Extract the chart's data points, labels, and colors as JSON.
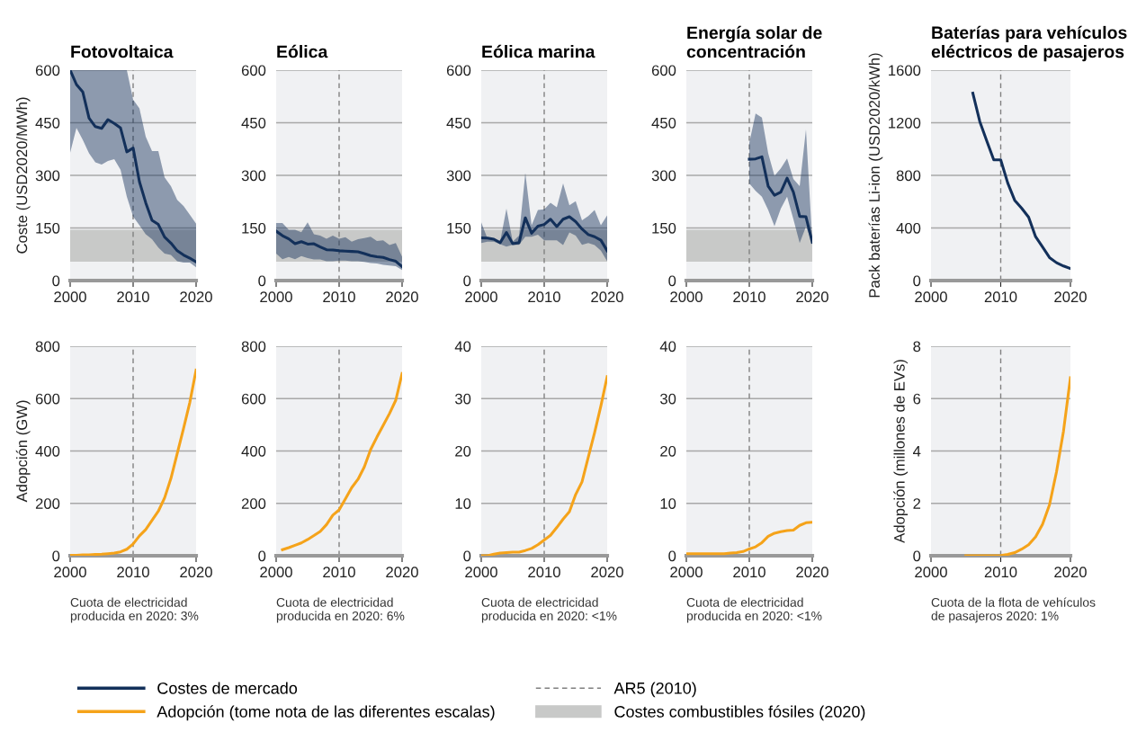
{
  "chart_data": [
    {
      "type": "line",
      "title": "Fotovoltaica",
      "ylabel": "Coste (USD2020/MWh)",
      "xlim": [
        2000,
        2020
      ],
      "xticks": [
        2000,
        2010,
        2020
      ],
      "ylim": [
        0,
        600
      ],
      "yticks": [
        0,
        150,
        300,
        450,
        600
      ],
      "grid": "y",
      "legend": "bottom",
      "x": [
        2000,
        2001,
        2002,
        2003,
        2004,
        2005,
        2006,
        2007,
        2008,
        2009,
        2010,
        2011,
        2012,
        2013,
        2014,
        2015,
        2016,
        2017,
        2018,
        2019,
        2020
      ],
      "series": [
        {
          "name": "Costes de mercado",
          "color": "#13305a",
          "values": [
            600,
            559,
            538,
            463,
            439,
            434,
            459,
            448,
            435,
            367,
            378,
            282,
            222,
            172,
            160,
            124,
            107,
            85,
            73,
            64,
            53
          ],
          "upper": [
            600,
            600,
            600,
            600,
            600,
            600,
            600,
            600,
            600,
            600,
            516,
            491,
            410,
            369,
            369,
            294,
            269,
            230,
            213,
            188,
            162
          ],
          "lower": [
            365,
            435,
            401,
            363,
            337,
            331,
            341,
            346,
            316,
            239,
            183,
            158,
            132,
            118,
            94,
            77,
            73,
            55,
            51,
            51,
            38
          ]
        }
      ],
      "bands": [
        {
          "axis": "y",
          "from": 54,
          "to": 145,
          "label": "Costes combustibles fósiles (2020)",
          "color": "#c8c9c8"
        }
      ],
      "ref_lines": [
        {
          "axis": "x",
          "value": 2010,
          "label": "AR5 (2010)",
          "color": "#808080",
          "line_style": "dashed"
        }
      ]
    },
    {
      "type": "line",
      "title": "Eólica",
      "xlim": [
        2000,
        2020
      ],
      "xticks": [
        2000,
        2010,
        2020
      ],
      "ylim": [
        0,
        600
      ],
      "yticks": [
        0,
        150,
        300,
        450,
        600
      ],
      "grid": "y",
      "x": [
        2000,
        2001,
        2002,
        2003,
        2004,
        2005,
        2006,
        2007,
        2008,
        2009,
        2010,
        2011,
        2012,
        2013,
        2014,
        2015,
        2016,
        2017,
        2018,
        2019,
        2020
      ],
      "series": [
        {
          "color": "#13305a",
          "values": [
            141,
            128,
            119,
            105,
            111,
            104,
            105,
            96,
            88,
            87,
            85,
            84,
            83,
            82,
            77,
            71,
            68,
            66,
            60,
            55,
            40
          ],
          "upper": [
            164,
            164,
            145,
            145,
            138,
            166,
            132,
            128,
            119,
            128,
            119,
            124,
            111,
            118,
            121,
            125,
            113,
            115,
            101,
            107,
            68
          ],
          "lower": [
            77,
            61,
            67,
            61,
            70,
            64,
            60,
            60,
            55,
            55,
            57,
            57,
            55,
            55,
            53,
            50,
            49,
            45,
            43,
            41,
            30
          ]
        }
      ],
      "bands": [
        {
          "axis": "y",
          "from": 54,
          "to": 145,
          "color": "#c8c9c8"
        }
      ],
      "ref_lines": [
        {
          "axis": "x",
          "value": 2010,
          "color": "#808080",
          "line_style": "dashed"
        }
      ]
    },
    {
      "type": "line",
      "title": "Eólica marina",
      "xlim": [
        2000,
        2020
      ],
      "xticks": [
        2000,
        2010,
        2020
      ],
      "ylim": [
        0,
        600
      ],
      "yticks": [
        0,
        150,
        300,
        450,
        600
      ],
      "grid": "y",
      "x": [
        2000,
        2001,
        2002,
        2003,
        2004,
        2005,
        2006,
        2007,
        2008,
        2009,
        2010,
        2011,
        2012,
        2013,
        2014,
        2015,
        2016,
        2017,
        2018,
        2019,
        2020
      ],
      "series": [
        {
          "color": "#13305a",
          "values": [
            122,
            121,
            118,
            108,
            137,
            105,
            108,
            179,
            135,
            155,
            160,
            175,
            154,
            175,
            182,
            168,
            147,
            131,
            125,
            115,
            85
          ],
          "upper": [
            166,
            119,
            118,
            111,
            205,
            111,
            128,
            307,
            158,
            201,
            203,
            222,
            209,
            277,
            215,
            226,
            172,
            184,
            201,
            158,
            186
          ],
          "lower": [
            107,
            111,
            111,
            104,
            97,
            102,
            102,
            125,
            125,
            131,
            115,
            115,
            115,
            101,
            137,
            128,
            102,
            107,
            101,
            85,
            55
          ]
        }
      ],
      "bands": [
        {
          "axis": "y",
          "from": 54,
          "to": 145,
          "color": "#c8c9c8"
        }
      ],
      "ref_lines": [
        {
          "axis": "x",
          "value": 2010,
          "color": "#808080",
          "line_style": "dashed"
        }
      ]
    },
    {
      "type": "line",
      "title": "Energía solar de\nconcentración",
      "xlim": [
        2000,
        2020
      ],
      "xticks": [
        2000,
        2010,
        2020
      ],
      "ylim": [
        0,
        600
      ],
      "yticks": [
        0,
        150,
        300,
        450,
        600
      ],
      "grid": "y",
      "x": [
        2010,
        2011,
        2012,
        2013,
        2014,
        2015,
        2016,
        2017,
        2018,
        2019,
        2020
      ],
      "series": [
        {
          "color": "#13305a",
          "values": [
            346,
            347,
            353,
            269,
            243,
            252,
            292,
            252,
            183,
            182,
            109
          ],
          "upper": [
            393,
            476,
            465,
            363,
            299,
            320,
            348,
            290,
            269,
            431,
            111
          ],
          "lower": [
            277,
            256,
            239,
            201,
            155,
            205,
            239,
            175,
            107,
            154,
            109
          ]
        }
      ],
      "bands": [
        {
          "axis": "y",
          "from": 54,
          "to": 145,
          "color": "#c8c9c8"
        }
      ],
      "ref_lines": [
        {
          "axis": "x",
          "value": 2010,
          "color": "#808080",
          "line_style": "dashed"
        }
      ]
    },
    {
      "type": "line",
      "title": "Baterías para vehículos\neléctricos de pasajeros",
      "ylabel": "Pack baterías Li-ion (USD2020/kWh)",
      "xlim": [
        2000,
        2020
      ],
      "xticks": [
        2000,
        2010,
        2020
      ],
      "ylim": [
        0,
        1600
      ],
      "yticks": [
        0,
        400,
        800,
        1200,
        1600
      ],
      "grid": "y",
      "x": [
        2006,
        2007,
        2008,
        2009,
        2010,
        2011,
        2012,
        2013,
        2014,
        2015,
        2016,
        2017,
        2018,
        2019,
        2020
      ],
      "series": [
        {
          "color": "#13305a",
          "values": [
            1425,
            1209,
            1061,
            918,
            918,
            743,
            611,
            550,
            482,
            334,
            255,
            175,
            136,
            111,
            91
          ]
        }
      ],
      "ref_lines": [
        {
          "axis": "x",
          "value": 2010,
          "color": "#808080",
          "line_style": "dashed"
        }
      ]
    },
    {
      "type": "line",
      "ylabel": "Adopción (GW)",
      "xlim": [
        2000,
        2020
      ],
      "xticks": [
        2000,
        2010,
        2020
      ],
      "ylim": [
        0,
        800
      ],
      "yticks": [
        0,
        200,
        400,
        600,
        800
      ],
      "grid": "y",
      "legend": "bottom",
      "annotations": [
        "Cuota de electricidad\nproducida en 2020: 3%"
      ],
      "x": [
        2000,
        2001,
        2002,
        2003,
        2004,
        2005,
        2006,
        2007,
        2008,
        2009,
        2010,
        2011,
        2012,
        2013,
        2014,
        2015,
        2016,
        2017,
        2018,
        2019,
        2020
      ],
      "series": [
        {
          "name": "Adopción (tome nota de las diferentes escalas)",
          "color": "#f5a31a",
          "values": [
            2,
            2,
            3,
            3,
            5,
            6,
            8,
            10,
            15,
            25,
            45,
            76,
            100,
            135,
            170,
            221,
            295,
            390,
            485,
            585,
            709
          ]
        }
      ],
      "ref_lines": [
        {
          "axis": "x",
          "value": 2010,
          "color": "#808080",
          "line_style": "dashed"
        }
      ]
    },
    {
      "type": "line",
      "xlim": [
        2000,
        2020
      ],
      "xticks": [
        2000,
        2010,
        2020
      ],
      "ylim": [
        0,
        800
      ],
      "yticks": [
        0,
        200,
        400,
        600,
        800
      ],
      "grid": "y",
      "annotations": [
        "Cuota de electricidad\nproducida en 2020: 6%"
      ],
      "x": [
        2001,
        2002,
        2003,
        2004,
        2005,
        2006,
        2007,
        2008,
        2009,
        2010,
        2011,
        2012,
        2013,
        2014,
        2015,
        2016,
        2017,
        2018,
        2019,
        2020
      ],
      "series": [
        {
          "color": "#f5a31a",
          "values": [
            23,
            31,
            40,
            49,
            62,
            77,
            93,
            119,
            155,
            175,
            217,
            260,
            292,
            339,
            405,
            453,
            498,
            543,
            594,
            696
          ]
        }
      ],
      "ref_lines": [
        {
          "axis": "x",
          "value": 2010,
          "color": "#808080",
          "line_style": "dashed"
        }
      ]
    },
    {
      "type": "line",
      "xlim": [
        2000,
        2020
      ],
      "xticks": [
        2000,
        2010,
        2020
      ],
      "ylim": [
        0,
        40
      ],
      "yticks": [
        0,
        10,
        20,
        30,
        40
      ],
      "grid": "y",
      "annotations": [
        "Cuota de electricidad\nproducida en 2020: <1%"
      ],
      "x": [
        2000,
        2001,
        2002,
        2003,
        2004,
        2005,
        2006,
        2007,
        2008,
        2009,
        2010,
        2011,
        2012,
        2013,
        2014,
        2015,
        2016,
        2017,
        2018,
        2019,
        2020
      ],
      "series": [
        {
          "color": "#f5a31a",
          "values": [
            0,
            0,
            0.3,
            0.5,
            0.6,
            0.7,
            0.7,
            1.0,
            1.4,
            2.1,
            3.0,
            3.9,
            5.4,
            7.0,
            8.4,
            11.7,
            14.1,
            18.8,
            23.5,
            28.6,
            34.2
          ]
        }
      ],
      "ref_lines": [
        {
          "axis": "x",
          "value": 2010,
          "color": "#808080",
          "line_style": "dashed"
        }
      ]
    },
    {
      "type": "line",
      "xlim": [
        2000,
        2020
      ],
      "xticks": [
        2000,
        2010,
        2020
      ],
      "ylim": [
        0,
        40
      ],
      "yticks": [
        0,
        10,
        20,
        30,
        40
      ],
      "grid": "y",
      "annotations": [
        "Cuota de electricidad\nproducida en 2020: <1%"
      ],
      "x": [
        2000,
        2001,
        2002,
        2003,
        2004,
        2005,
        2006,
        2007,
        2008,
        2009,
        2010,
        2011,
        2012,
        2013,
        2014,
        2015,
        2016,
        2017,
        2018,
        2019,
        2020
      ],
      "series": [
        {
          "color": "#f5a31a",
          "values": [
            0.4,
            0.4,
            0.4,
            0.4,
            0.4,
            0.4,
            0.4,
            0.5,
            0.6,
            0.8,
            1.3,
            1.7,
            2.5,
            3.7,
            4.3,
            4.6,
            4.8,
            4.9,
            5.8,
            6.3,
            6.4
          ]
        }
      ],
      "ref_lines": [
        {
          "axis": "x",
          "value": 2010,
          "color": "#808080",
          "line_style": "dashed"
        }
      ]
    },
    {
      "type": "line",
      "ylabel": "Adopción (millones de EVs)",
      "xlim": [
        2000,
        2020
      ],
      "xticks": [
        2000,
        2010,
        2020
      ],
      "ylim": [
        0,
        8
      ],
      "yticks": [
        0,
        2,
        4,
        6,
        8
      ],
      "grid": "y",
      "annotations": [
        "Cuota de la flota de vehículos\nde pasajeros 2020: 1%"
      ],
      "x": [
        2005,
        2006,
        2007,
        2008,
        2009,
        2010,
        2011,
        2012,
        2013,
        2014,
        2015,
        2016,
        2017,
        2018,
        2019,
        2020
      ],
      "series": [
        {
          "color": "#f5a31a",
          "values": [
            0,
            0,
            0,
            0,
            0,
            0.01,
            0.05,
            0.12,
            0.25,
            0.42,
            0.72,
            1.2,
            1.95,
            3.2,
            4.75,
            6.8
          ]
        }
      ],
      "ref_lines": [
        {
          "axis": "x",
          "value": 2010,
          "color": "#808080",
          "line_style": "dashed"
        }
      ]
    }
  ]
}
